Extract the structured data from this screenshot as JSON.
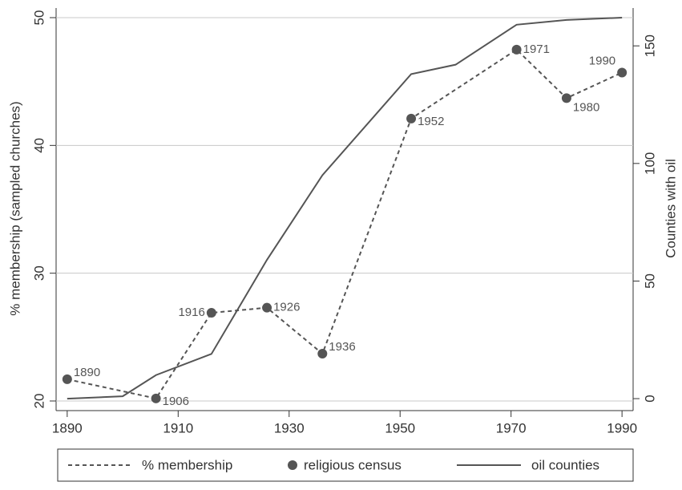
{
  "chart_data": {
    "type": "line",
    "y_label": "% membership (sampled churches)",
    "y2_label": "Counties with oil",
    "xlim": [
      1888,
      1992
    ],
    "xticks": [
      1890,
      1910,
      1930,
      1950,
      1970,
      1990
    ],
    "ylim": [
      20,
      50
    ],
    "yticks": [
      20,
      30,
      40,
      50
    ],
    "y2lim": [
      -1,
      162
    ],
    "y2ticks": [
      0,
      50,
      100,
      150
    ],
    "grid": true,
    "marker_legend": "religious census",
    "series": [
      {
        "name": "% membership",
        "color": "#555555",
        "dashed": true,
        "markers": true,
        "x": [
          1890,
          1906,
          1916,
          1926,
          1936,
          1952,
          1971,
          1980,
          1990
        ],
        "values": [
          21.7,
          20.2,
          26.9,
          27.3,
          23.7,
          42.1,
          47.5,
          43.7,
          45.7
        ]
      },
      {
        "name": "oil counties",
        "color": "#555555",
        "axis": "y2",
        "x": [
          1890,
          1900,
          1906,
          1916,
          1926,
          1936,
          1952,
          1960,
          1971,
          1980,
          1990
        ],
        "values": [
          0,
          1,
          10,
          19,
          59,
          95,
          138,
          142,
          159,
          161,
          162
        ]
      }
    ]
  }
}
